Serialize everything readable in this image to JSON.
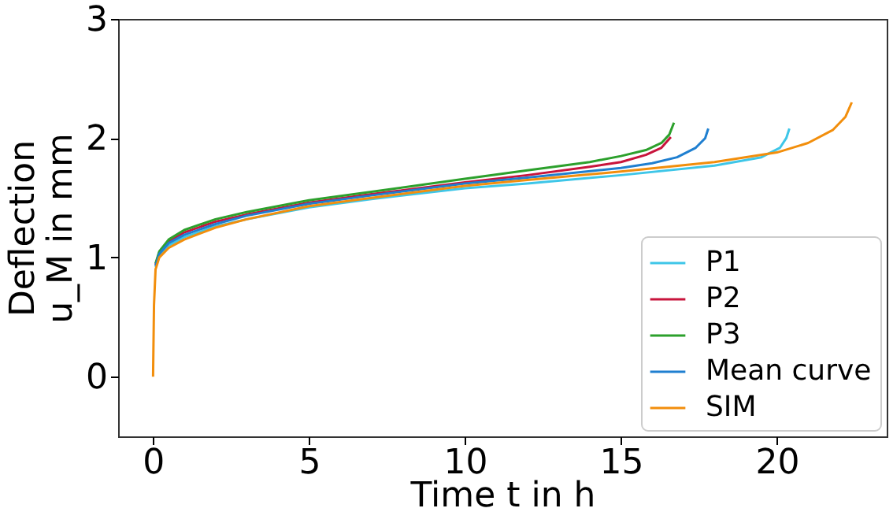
{
  "chart_data": {
    "type": "line",
    "xlabel": "Time t in h",
    "ylabel": "Deflection u_M in mm",
    "xlim": [
      -1.12,
      23.52
    ],
    "ylim": [
      -0.5,
      3
    ],
    "xticks": [
      0,
      5,
      10,
      15,
      20
    ],
    "yticks": [
      0,
      1,
      2,
      3
    ],
    "grid": false,
    "legend": "bottom right",
    "line_style": "solid",
    "marker": "none",
    "series": [
      {
        "name": "P1",
        "color": "#3ec6e8",
        "x": [
          0.08,
          0.2,
          0.5,
          1,
          2,
          3,
          5,
          7,
          10,
          12,
          15,
          18,
          19.5,
          20.1,
          20.3,
          20.4
        ],
        "values": [
          0.92,
          1.02,
          1.1,
          1.17,
          1.26,
          1.32,
          1.42,
          1.49,
          1.58,
          1.62,
          1.69,
          1.77,
          1.84,
          1.92,
          2.0,
          2.08
        ]
      },
      {
        "name": "P2",
        "color": "#c8143c",
        "x": [
          0.08,
          0.2,
          0.5,
          1,
          2,
          3,
          5,
          7,
          10,
          12,
          14,
          15,
          15.8,
          16.3,
          16.6
        ],
        "values": [
          0.94,
          1.04,
          1.13,
          1.21,
          1.3,
          1.36,
          1.46,
          1.53,
          1.63,
          1.69,
          1.76,
          1.8,
          1.86,
          1.92,
          2.01
        ]
      },
      {
        "name": "P3",
        "color": "#2ca02c",
        "x": [
          0.08,
          0.2,
          0.5,
          1,
          2,
          3,
          5,
          7,
          10,
          12,
          14,
          15,
          15.8,
          16.3,
          16.55,
          16.7
        ],
        "values": [
          0.95,
          1.05,
          1.15,
          1.23,
          1.32,
          1.38,
          1.48,
          1.55,
          1.66,
          1.73,
          1.8,
          1.85,
          1.9,
          1.96,
          2.03,
          2.13
        ]
      },
      {
        "name": "Mean curve",
        "color": "#1f7fd0",
        "x": [
          0.08,
          0.2,
          0.5,
          1,
          2,
          3,
          5,
          7,
          10,
          12,
          15,
          16,
          16.8,
          17.4,
          17.7,
          17.8
        ],
        "values": [
          0.93,
          1.03,
          1.12,
          1.19,
          1.28,
          1.35,
          1.45,
          1.52,
          1.62,
          1.67,
          1.75,
          1.79,
          1.84,
          1.92,
          2.0,
          2.08
        ]
      },
      {
        "name": "SIM",
        "color": "#f28e0c",
        "x": [
          0,
          0.03,
          0.08,
          0.2,
          0.5,
          1,
          2,
          3,
          5,
          7,
          10,
          12,
          15,
          18,
          20,
          21,
          21.8,
          22.2,
          22.4
        ],
        "values": [
          0,
          0.6,
          0.9,
          1.0,
          1.08,
          1.15,
          1.25,
          1.32,
          1.43,
          1.5,
          1.6,
          1.65,
          1.72,
          1.8,
          1.88,
          1.96,
          2.07,
          2.18,
          2.3
        ]
      }
    ]
  }
}
